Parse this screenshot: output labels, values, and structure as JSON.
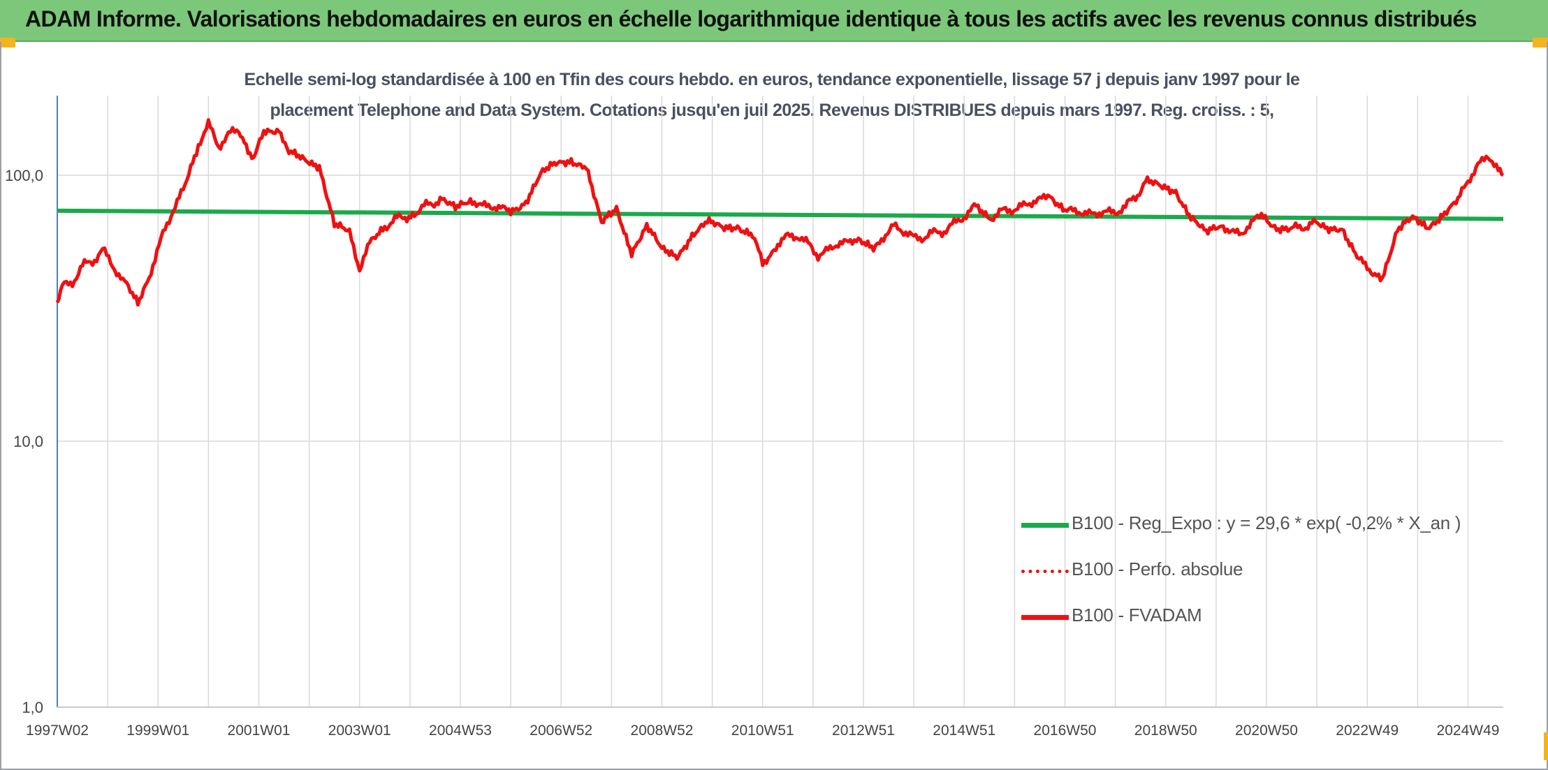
{
  "header": {
    "title": "ADAM Informe. Valorisations hebdomadaires en euros en échelle logarithmique identique à tous les actifs avec les revenus connus distribués"
  },
  "chart_data": {
    "type": "line",
    "title_line1": "Echelle semi-log standardisée à 100 en Tfin des cours hebdo. en euros, tendance exponentielle, lissage 57 j depuis janv 1997 pour le",
    "title_line2": "placement Telephone and Data System. Cotations jusqu'en juil 2025. Revenus DISTRIBUES depuis mars 1997. Reg. croiss. : 5,",
    "y_scale": "log",
    "ylim": [
      1,
      200
    ],
    "y_ticks": [
      {
        "value": 1,
        "label": "1,0"
      },
      {
        "value": 10,
        "label": "10,0"
      },
      {
        "value": 100,
        "label": "100,0"
      }
    ],
    "x_range": [
      1997.0,
      2025.7
    ],
    "x_ticks": [
      {
        "value": 1997.0,
        "label": "1997W02"
      },
      {
        "value": 1999.0,
        "label": "1999W01"
      },
      {
        "value": 2001.0,
        "label": "2001W01"
      },
      {
        "value": 2003.0,
        "label": "2003W01"
      },
      {
        "value": 2005.0,
        "label": "2004W53"
      },
      {
        "value": 2007.0,
        "label": "2006W52"
      },
      {
        "value": 2009.0,
        "label": "2008W52"
      },
      {
        "value": 2011.0,
        "label": "2010W51"
      },
      {
        "value": 2013.0,
        "label": "2012W51"
      },
      {
        "value": 2015.0,
        "label": "2014W51"
      },
      {
        "value": 2017.0,
        "label": "2016W50"
      },
      {
        "value": 2019.0,
        "label": "2018W50"
      },
      {
        "value": 2021.0,
        "label": "2020W50"
      },
      {
        "value": 2023.0,
        "label": "2022W49"
      },
      {
        "value": 2025.0,
        "label": "2024W49"
      }
    ],
    "grid": true,
    "legend_position": "bottom-right",
    "colors": {
      "trend": "#1aaa4a",
      "fvadam": "#ee1111",
      "perf": "#ee1111",
      "grid": "#d9d9d9",
      "axis": "#4a7fc1"
    },
    "series": [
      {
        "name": "B100 - Reg_Expo : y = 29,6 * exp( -0,2% *  X_an )",
        "style": "solid-green",
        "x": [
          1997.0,
          2025.7
        ],
        "values": [
          73.5,
          68.5
        ]
      },
      {
        "name": "B100 - Perfo. absolue",
        "style": "dotted-red",
        "x": [],
        "values": []
      },
      {
        "name": "B100 - FVADAM",
        "style": "solid-red",
        "x": [
          1997.0,
          1997.1,
          1997.3,
          1997.5,
          1997.7,
          1997.9,
          1998.1,
          1998.3,
          1998.6,
          1998.9,
          1999.1,
          1999.3,
          1999.5,
          1999.8,
          2000.0,
          2000.2,
          2000.4,
          2000.6,
          2000.9,
          2001.1,
          2001.4,
          2001.6,
          2001.9,
          2002.2,
          2002.5,
          2002.8,
          2003.0,
          2003.2,
          2003.5,
          2003.9,
          2004.2,
          2004.6,
          2004.9,
          2005.2,
          2005.6,
          2006.0,
          2006.3,
          2006.6,
          2006.9,
          2007.2,
          2007.5,
          2007.8,
          2008.1,
          2008.4,
          2008.7,
          2009.0,
          2009.3,
          2009.6,
          2009.9,
          2010.2,
          2010.5,
          2010.8,
          2011.0,
          2011.3,
          2011.7,
          2012.1,
          2012.5,
          2012.9,
          2013.2,
          2013.6,
          2014.0,
          2014.4,
          2014.8,
          2015.2,
          2015.5,
          2015.9,
          2016.3,
          2016.7,
          2017.0,
          2017.4,
          2017.8,
          2018.2,
          2018.6,
          2018.9,
          2019.2,
          2019.5,
          2019.8,
          2020.1,
          2020.5,
          2020.9,
          2021.2,
          2021.5,
          2021.9,
          2022.2,
          2022.5,
          2022.8,
          2023.0,
          2023.3,
          2023.6,
          2023.9,
          2024.2,
          2024.5,
          2024.8,
          2025.0,
          2025.2,
          2025.4,
          2025.6,
          2025.7
        ],
        "values": [
          32,
          38,
          40,
          45,
          48,
          52,
          46,
          40,
          33,
          46,
          60,
          75,
          86,
          130,
          155,
          130,
          140,
          150,
          115,
          145,
          150,
          120,
          115,
          110,
          65,
          60,
          45,
          55,
          65,
          70,
          74,
          82,
          74,
          80,
          76,
          74,
          80,
          100,
          110,
          115,
          108,
          65,
          75,
          52,
          64,
          52,
          50,
          60,
          66,
          63,
          65,
          60,
          46,
          56,
          60,
          50,
          55,
          58,
          52,
          65,
          58,
          60,
          65,
          76,
          70,
          74,
          78,
          85,
          74,
          72,
          72,
          75,
          94,
          90,
          88,
          70,
          60,
          64,
          60,
          72,
          64,
          62,
          66,
          62,
          64,
          50,
          44,
          42,
          62,
          68,
          64,
          72,
          80,
          95,
          110,
          118,
          104,
          100
        ]
      }
    ]
  }
}
